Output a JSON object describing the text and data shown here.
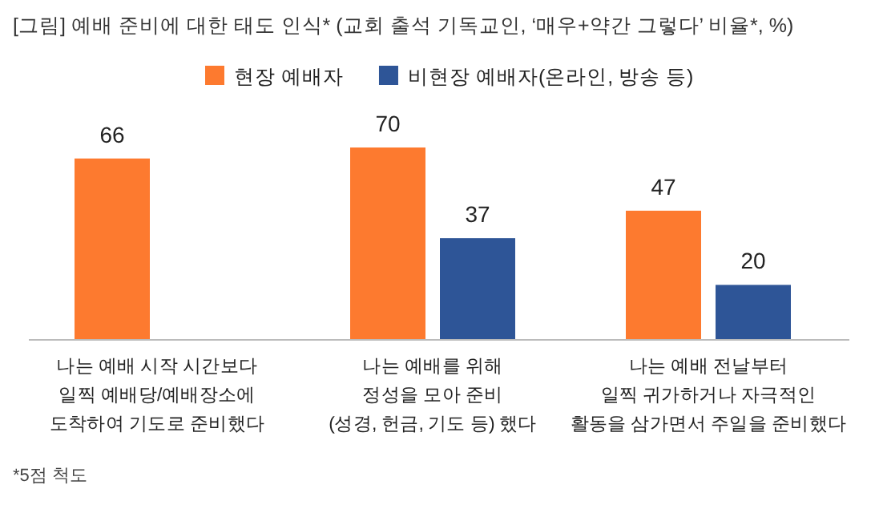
{
  "chart_data": {
    "type": "bar",
    "title": "[그림] 예배 준비에 대한 태도 인식* (교회 출석 기독교인, ‘매우+약간 그렇다’ 비율*, %)",
    "categories": [
      "나는 예배 시작 시간보다\n일찍 예배당/예배장소에\n도착하여 기도로 준비했다",
      "나는 예배를 위해\n정성을 모아 준비\n(성경, 헌금, 기도 등) 했다",
      "나는 예배 전날부터\n일찍 귀가하거나 자극적인\n활동을 삼가면서 주일을 준비했다"
    ],
    "series": [
      {
        "name": "현장 예배자",
        "color": "#fd7a2f",
        "values": [
          66,
          70,
          47
        ]
      },
      {
        "name": "비현장 예배자(온라인, 방송 등)",
        "color": "#2e5597",
        "values": [
          null,
          37,
          20
        ]
      }
    ],
    "data_labels": true,
    "legend": "top",
    "annotations": [
      "*5점 척도"
    ]
  }
}
